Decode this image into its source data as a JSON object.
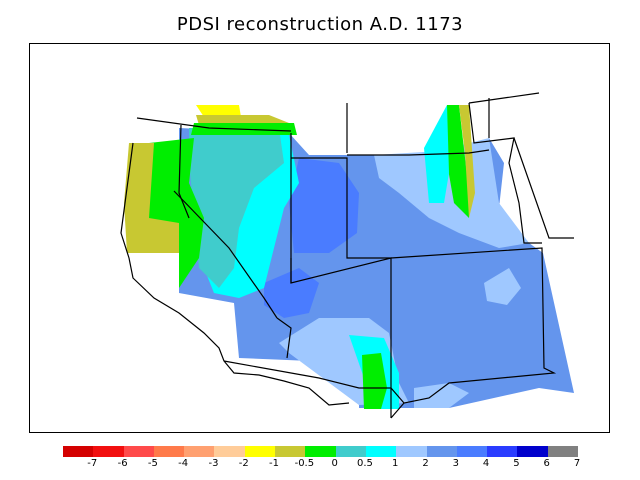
{
  "title": "PDSI reconstruction A.D. 1173",
  "legend": {
    "colors": [
      "#d40000",
      "#f20f0f",
      "#ff4a4a",
      "#ff7a4a",
      "#ffa070",
      "#ffcc99",
      "#ffff00",
      "#c8c832",
      "#00ee00",
      "#40cccc",
      "#00ffff",
      "#9fc8ff",
      "#6495ed",
      "#4a7cff",
      "#2a3cff",
      "#0000cc",
      "#808080"
    ],
    "ticks": [
      "-7",
      "-6",
      "-5",
      "-4",
      "-3",
      "-2",
      "-1",
      "-0.5",
      "0",
      "0.5",
      "1",
      "2",
      "3",
      "4",
      "5",
      "6",
      "7"
    ]
  },
  "map": {
    "colors": {
      "frame": "#000000",
      "ocean": "#ffffff",
      "strong_dry": "#ffff00",
      "moderate_dry": "#c8c832",
      "near_normal": "#00ee00",
      "slight_wet": "#40cccc",
      "wet1": "#00ffff",
      "wet2": "#9fc8ff",
      "wet3": "#6495ed",
      "wet4": "#4a7cff"
    }
  }
}
